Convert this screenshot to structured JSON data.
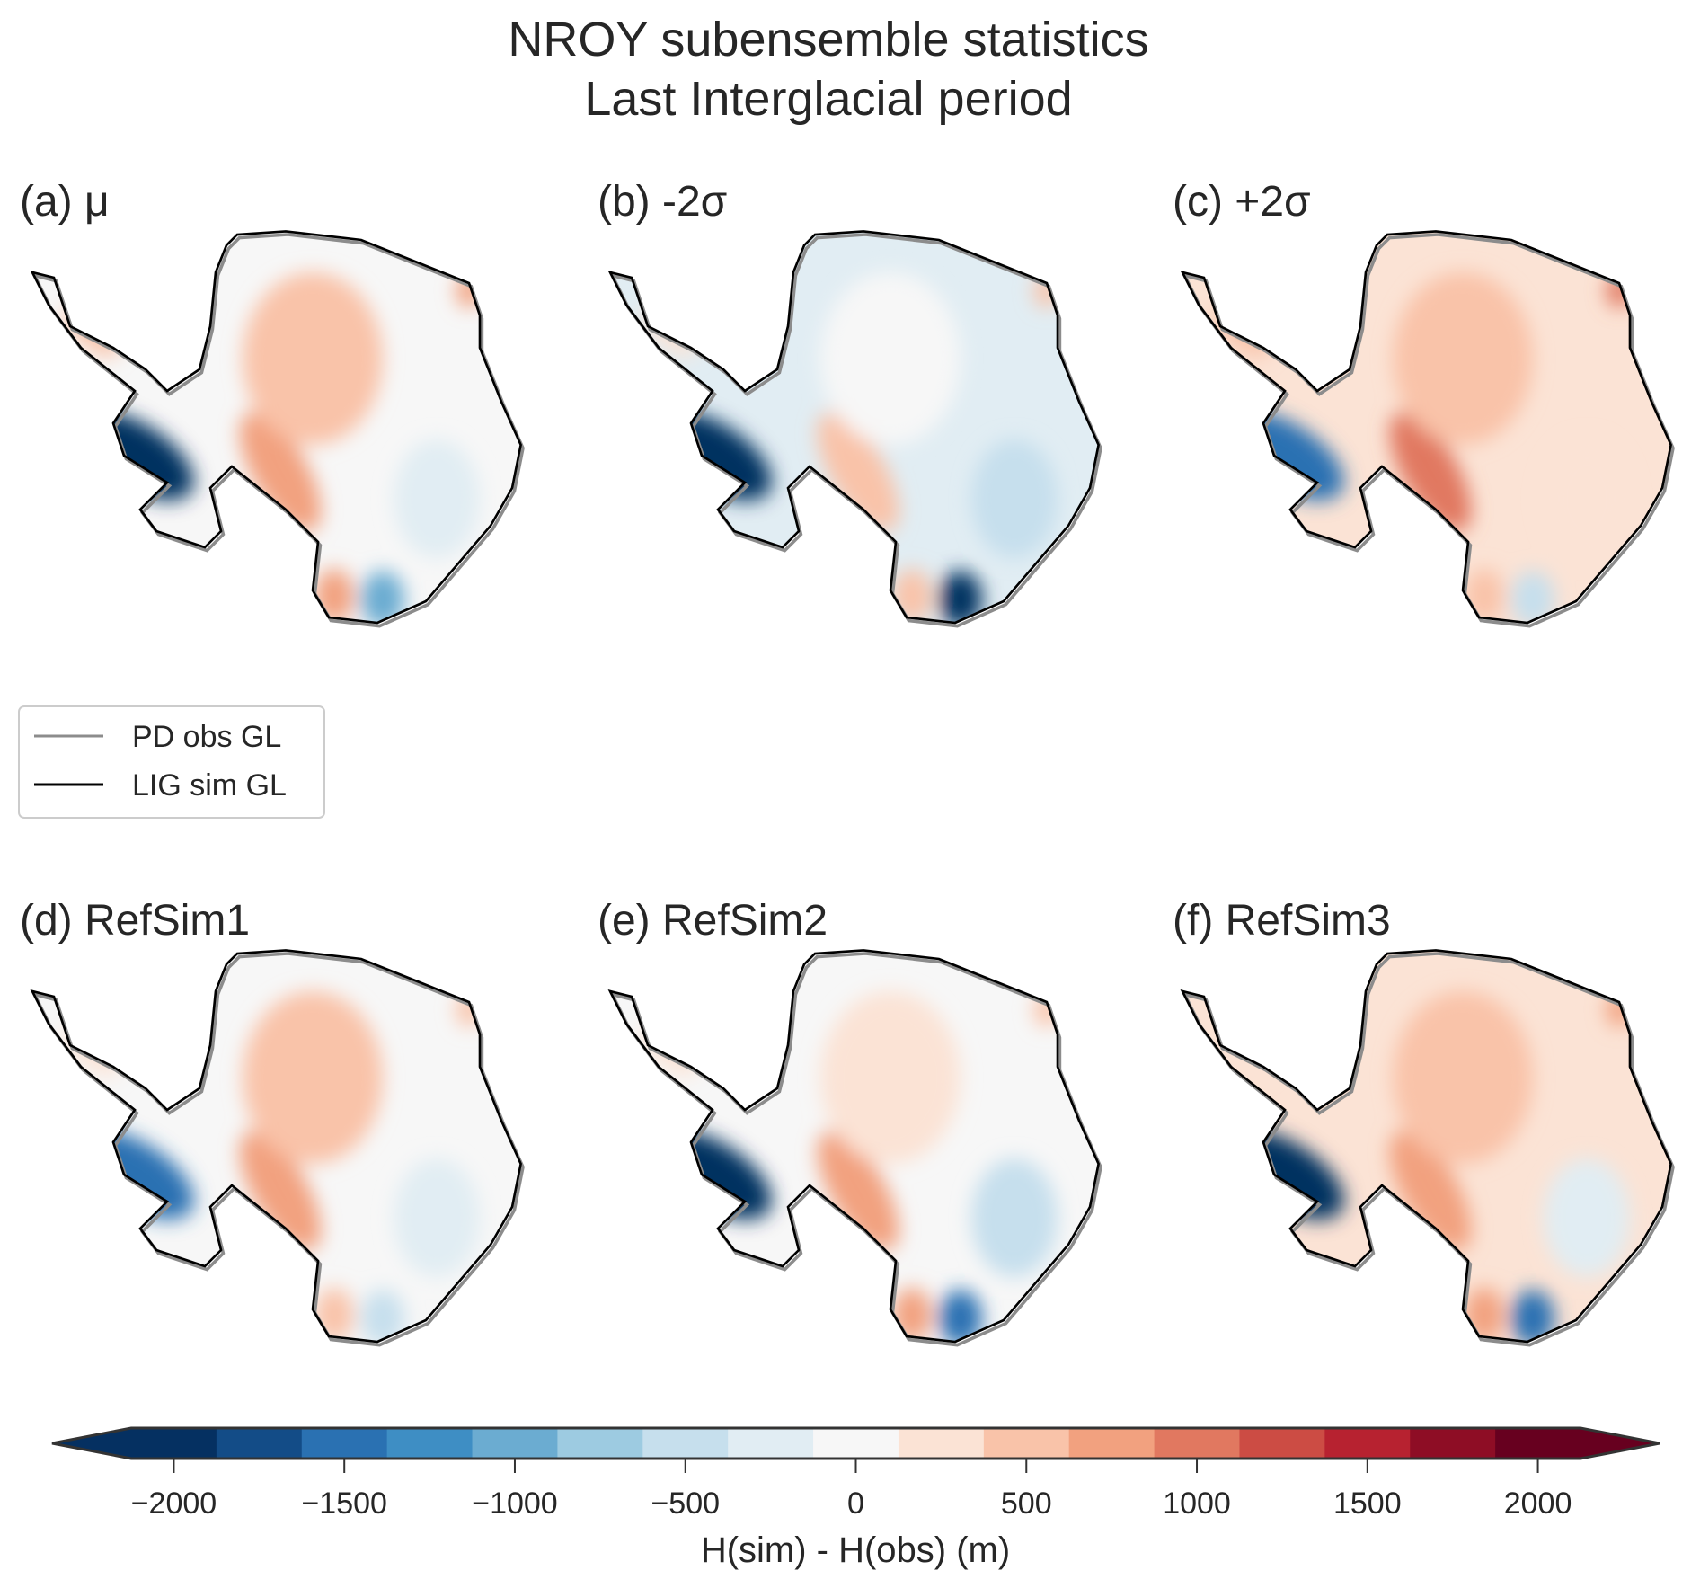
{
  "chart_data": {
    "type": "heatmap",
    "title": [
      "NROY subensemble statistics",
      "Last Interglacial period"
    ],
    "panels": [
      {
        "label": "(a) μ",
        "base": 0,
        "regions": {
          "wais": -2000,
          "ross_ridge": 750,
          "east_interior": 400,
          "east_coast": -300,
          "south_left": 700,
          "south_right": -1000,
          "peninsula": 400,
          "corner": 800
        }
      },
      {
        "label": "(b) -2σ",
        "base": -250,
        "regions": {
          "wais": -2000,
          "ross_ridge": 600,
          "east_interior": -100,
          "east_coast": -400,
          "south_left": 500,
          "south_right": -2000,
          "peninsula": 300,
          "corner": 500
        }
      },
      {
        "label": "(c) +2σ",
        "base": 300,
        "regions": {
          "wais": -1500,
          "ross_ridge": 900,
          "east_interior": 600,
          "east_coast": 300,
          "south_left": 600,
          "south_right": -500,
          "peninsula": 500,
          "corner": 900
        }
      },
      {
        "label": "(d) RefSim1",
        "base": 0,
        "regions": {
          "wais": -1500,
          "ross_ridge": 800,
          "east_interior": 400,
          "east_coast": -300,
          "south_left": 600,
          "south_right": -600,
          "peninsula": 300,
          "corner": 600
        }
      },
      {
        "label": "(e) RefSim2",
        "base": -100,
        "regions": {
          "wais": -2000,
          "ross_ridge": 700,
          "east_interior": 300,
          "east_coast": -400,
          "south_left": 700,
          "south_right": -1500,
          "peninsula": 300,
          "corner": 600
        }
      },
      {
        "label": "(f) RefSim3",
        "base": 150,
        "regions": {
          "wais": -2000,
          "ross_ridge": 800,
          "east_interior": 400,
          "east_coast": -200,
          "south_left": 700,
          "south_right": -1500,
          "peninsula": 300,
          "corner": 700
        }
      }
    ],
    "legend": {
      "placement": "middle-left",
      "entries": [
        {
          "label": "PD obs GL",
          "color": "#8c8c8c"
        },
        {
          "label": "LIG sim GL",
          "color": "#000000"
        }
      ]
    },
    "colorbar": {
      "label": "H(sim) - H(obs) (m)",
      "range": [
        -2125,
        2125
      ],
      "step": 250,
      "extend": "both",
      "ticks": [
        -2000,
        -1500,
        -1000,
        -500,
        0,
        500,
        1000,
        1500,
        2000
      ],
      "tick_labels": [
        "−2000",
        "−1500",
        "−1000",
        "−500",
        "0",
        "500",
        "1000",
        "1500",
        "2000"
      ],
      "colors": [
        "#053061",
        "#134c87",
        "#2a71b2",
        "#3e8ec4",
        "#6bacd1",
        "#9dcbe1",
        "#c6dfed",
        "#e1edf3",
        "#f7f7f7",
        "#fbe3d5",
        "#f9c3a9",
        "#f2a17f",
        "#e17860",
        "#cc4c44",
        "#b72230",
        "#8e0d25",
        "#67001f"
      ]
    }
  }
}
